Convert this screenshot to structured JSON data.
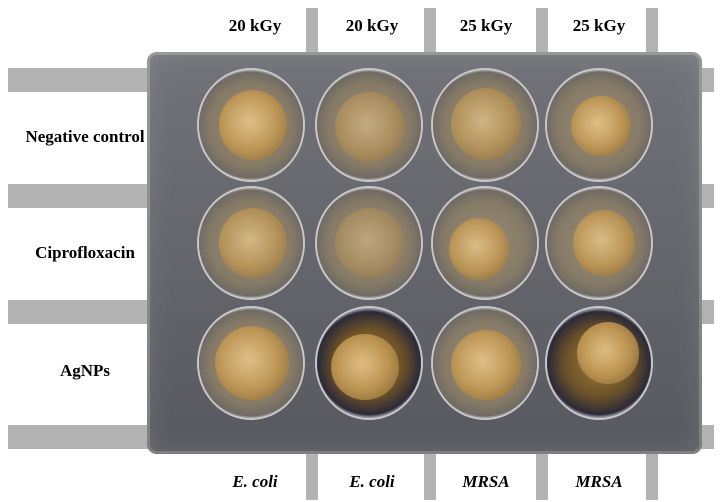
{
  "columns": [
    {
      "dose": "20 kGy",
      "organism": "E. coli"
    },
    {
      "dose": "20 kGy",
      "organism": "E. coli"
    },
    {
      "dose": "25 kGy",
      "organism": "MRSA"
    },
    {
      "dose": "25 kGy",
      "organism": "MRSA"
    }
  ],
  "rows": [
    "Negative control",
    "Ciprofloxacin",
    "AgNPs"
  ],
  "colors": {
    "guide_bar": "#b3b3b3",
    "plate": "#62626a"
  }
}
